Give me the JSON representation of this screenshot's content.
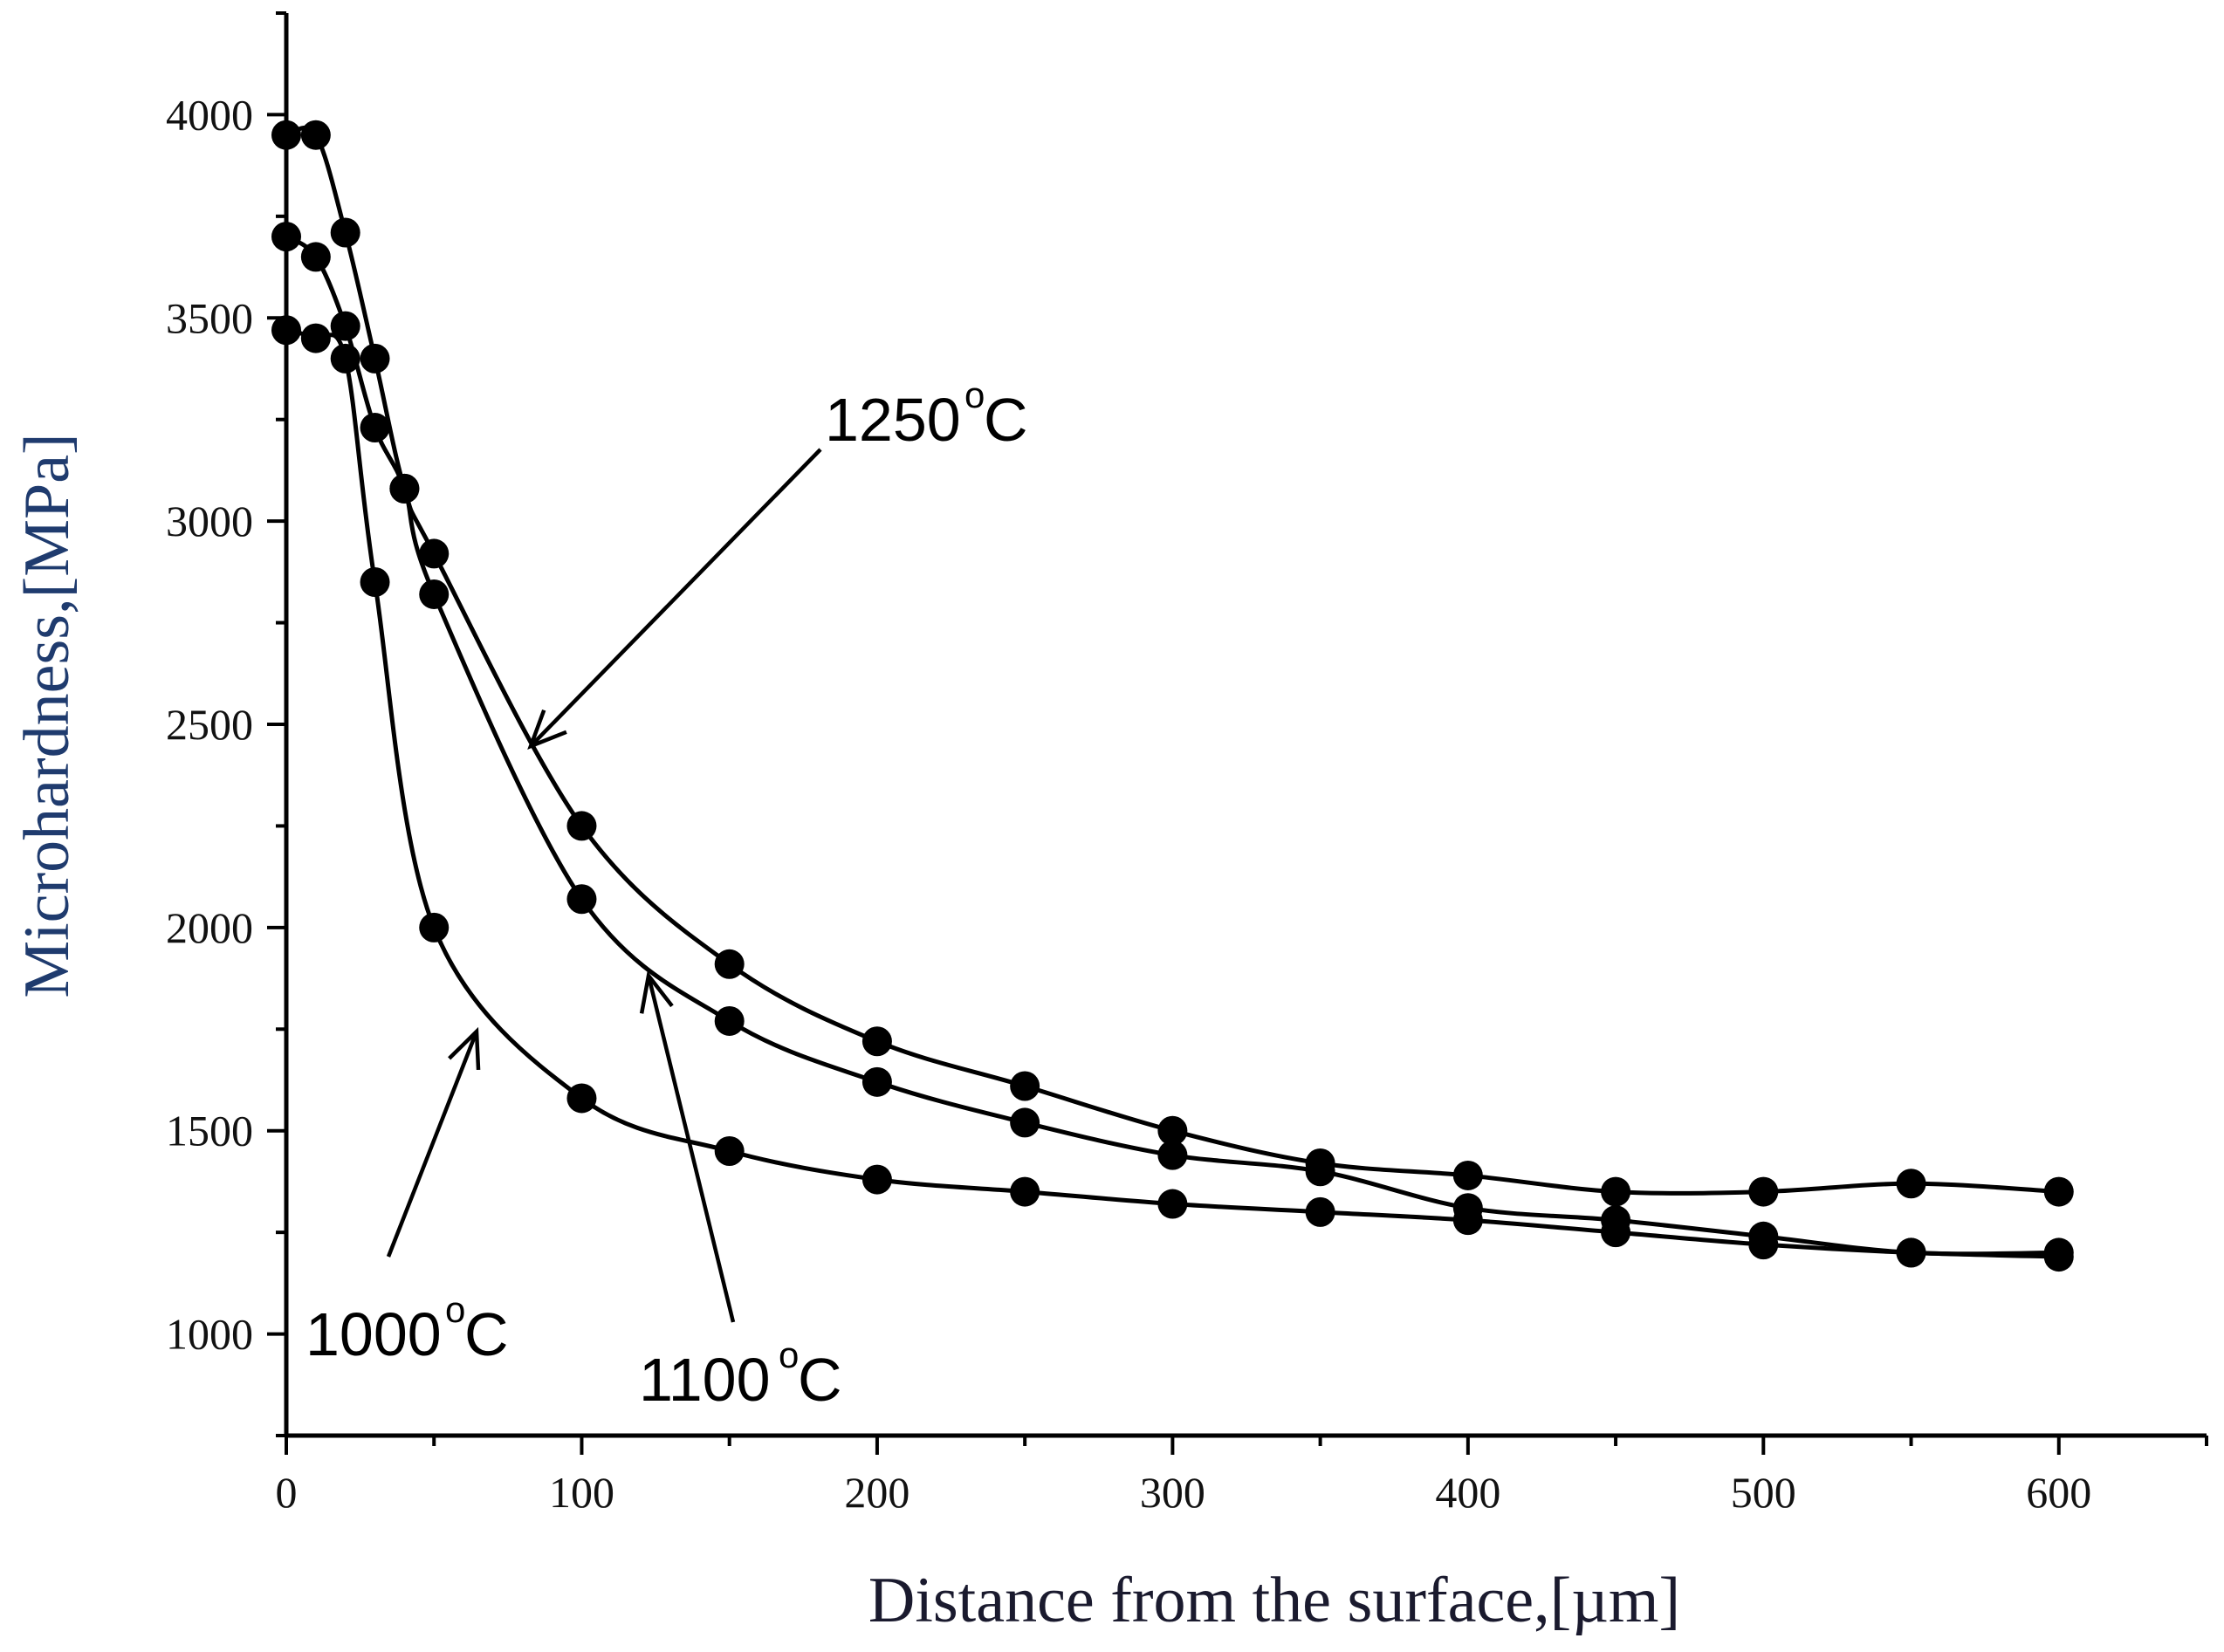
{
  "chart_data": {
    "type": "line",
    "title": "",
    "xlabel": "Distance from the surface,[µm]",
    "ylabel": "Microhardness,[MPa]",
    "xlim": [
      0,
      650
    ],
    "ylim": [
      750,
      4250
    ],
    "xticks": [
      0,
      100,
      200,
      300,
      400,
      500,
      600
    ],
    "yticks": [
      1000,
      1500,
      2000,
      2500,
      3000,
      3500,
      4000
    ],
    "grid": false,
    "marker": "filled-circle",
    "series": [
      {
        "name": "1250°C",
        "x": [
          0,
          10,
          20,
          30,
          40,
          50,
          100,
          150,
          200,
          250,
          300,
          350,
          400,
          450,
          500,
          550,
          600
        ],
        "values": [
          3950,
          3950,
          3710,
          3400,
          3080,
          2920,
          2250,
          1910,
          1720,
          1610,
          1500,
          1420,
          1390,
          1350,
          1350,
          1370,
          1350
        ]
      },
      {
        "name": "1100°C",
        "x": [
          0,
          10,
          20,
          30,
          40,
          50,
          100,
          150,
          200,
          250,
          300,
          350,
          400,
          450,
          500,
          550,
          600
        ],
        "values": [
          3700,
          3650,
          3480,
          3230,
          3080,
          2820,
          2070,
          1770,
          1620,
          1520,
          1440,
          1400,
          1310,
          1280,
          1240,
          1200,
          1200
        ]
      },
      {
        "name": "1000°C",
        "x": [
          0,
          10,
          20,
          30,
          50,
          100,
          150,
          200,
          250,
          300,
          350,
          400,
          450,
          500,
          550,
          600
        ],
        "values": [
          3470,
          3450,
          3400,
          2850,
          2000,
          1580,
          1450,
          1380,
          1350,
          1320,
          1300,
          1280,
          1250,
          1220,
          1200,
          1190
        ]
      }
    ],
    "annotations": [
      {
        "base": "1250",
        "unit": "C",
        "sup": "o",
        "points_to": "1250°C curve"
      },
      {
        "base": "1100",
        "unit": "C",
        "sup": "o",
        "points_to": "1100°C curve"
      },
      {
        "base": "1000",
        "unit": "C",
        "sup": "o",
        "points_to": "1000°C curve"
      }
    ],
    "colors": {
      "line": "#000000",
      "marker": "#000000",
      "ylabel": "#1f3b6e",
      "xlabel": "#1a1a2e"
    }
  }
}
